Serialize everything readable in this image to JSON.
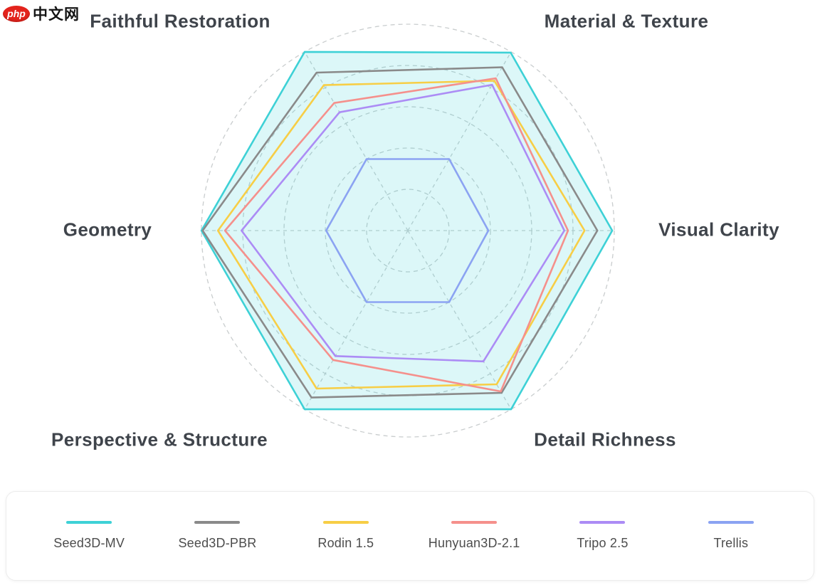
{
  "watermark": {
    "badge": "php",
    "text": "中文网",
    "badge_color": "#e3231c"
  },
  "chart_data": {
    "type": "radar",
    "title": "",
    "scale_max": 5,
    "rings": 5,
    "center": {
      "x": 573,
      "y": 324
    },
    "outer_radius": 290,
    "grid_color": "#c9cdce",
    "grid_style": "dashed",
    "legend_position": "bottom",
    "axes": [
      {
        "label": "Faithful Restoration",
        "angle_deg": 120
      },
      {
        "label": "Material & Texture",
        "angle_deg": 60
      },
      {
        "label": "Visual Clarity",
        "angle_deg": 0
      },
      {
        "label": "Detail Richness",
        "angle_deg": 300
      },
      {
        "label": "Perspective & Structure",
        "angle_deg": 240
      },
      {
        "label": "Geometry",
        "angle_deg": 180
      }
    ],
    "series": [
      {
        "name": "Seed3D-MV",
        "color": "#3ed1d6",
        "fill": "rgba(62,209,214,0.18)",
        "values": [
          5.0,
          4.98,
          4.95,
          5.0,
          5.0,
          5.0
        ]
      },
      {
        "name": "Seed3D-PBR",
        "color": "#8a8a8a",
        "fill": "none",
        "values": [
          4.42,
          4.57,
          4.59,
          4.54,
          4.67,
          4.97
        ]
      },
      {
        "name": "Rodin 1.5",
        "color": "#f7ce46",
        "fill": "none",
        "values": [
          4.07,
          4.19,
          4.28,
          4.3,
          4.42,
          4.6
        ]
      },
      {
        "name": "Hunyuan3D-2.1",
        "color": "#f5908c",
        "fill": "none",
        "values": [
          3.57,
          4.26,
          3.88,
          4.5,
          3.62,
          4.43
        ]
      },
      {
        "name": "Tripo 2.5",
        "color": "#ac8cf5",
        "fill": "none",
        "values": [
          3.31,
          4.08,
          3.79,
          3.66,
          3.51,
          4.03
        ]
      },
      {
        "name": "Trellis",
        "color": "#8ba3f2",
        "fill": "none",
        "values": [
          2.0,
          2.0,
          1.95,
          2.0,
          2.0,
          1.98
        ]
      }
    ]
  }
}
